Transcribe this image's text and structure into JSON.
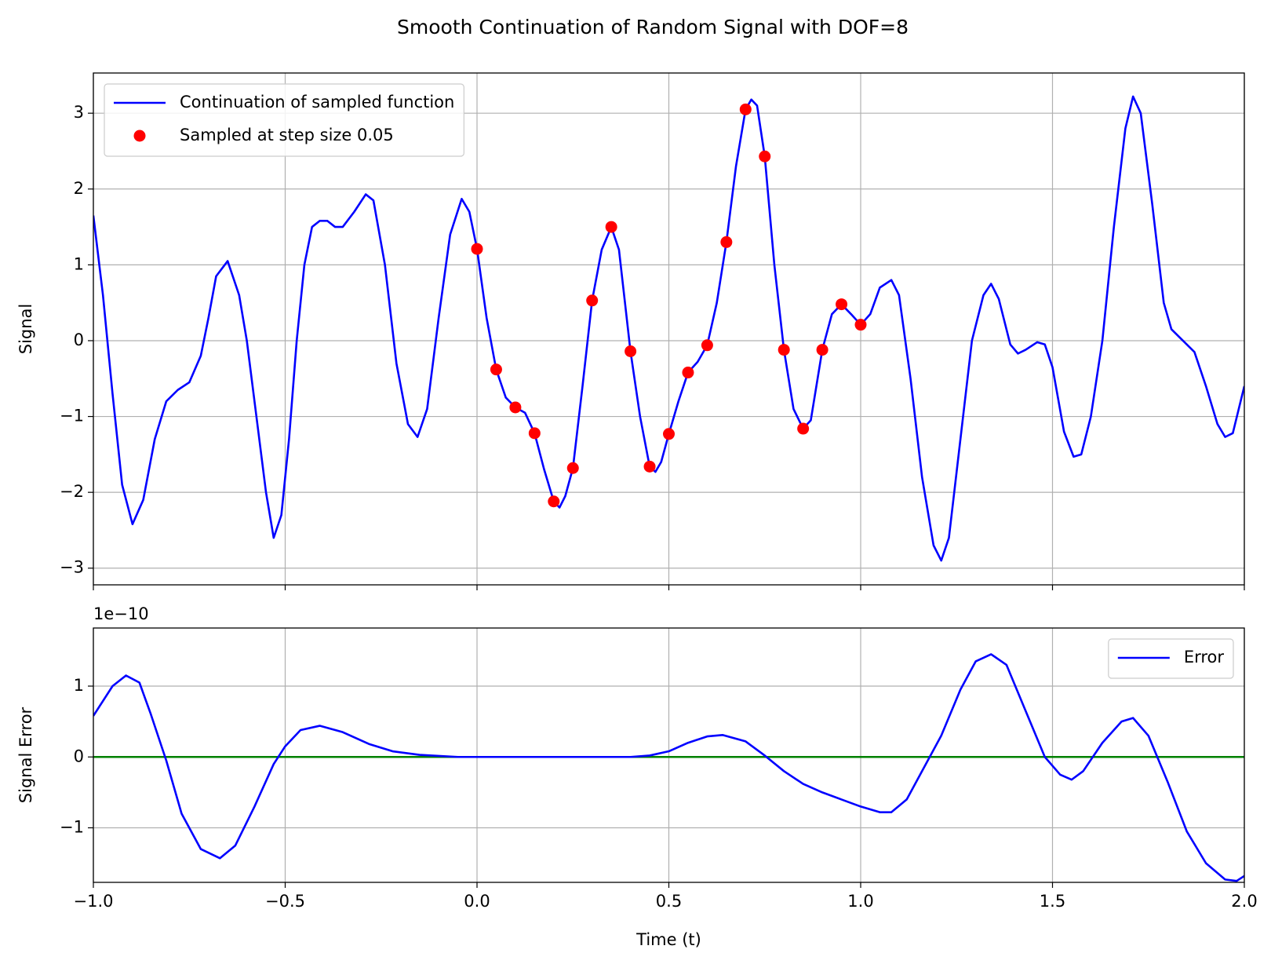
{
  "title": "Smooth Continuation of Random Signal with DOF=8",
  "chart_data": [
    {
      "type": "line",
      "ylabel": "Signal",
      "legend": "upper left",
      "grid": true,
      "xlim": [
        -1,
        2
      ],
      "ylim": [
        -3.22,
        3.53
      ],
      "xticks": [
        -1,
        -0.5,
        0,
        0.5,
        1,
        1.5,
        2
      ],
      "yticks": [
        {
          "value": -3,
          "label": "−3"
        },
        {
          "value": -2,
          "label": "−2"
        },
        {
          "value": -1,
          "label": "−1"
        },
        0,
        1,
        2,
        3
      ],
      "series": [
        {
          "name": "Continuation of sampled function",
          "style": "line",
          "color": "#0000ff",
          "x": [
            -1.0,
            -0.975,
            -0.95,
            -0.925,
            -0.898,
            -0.87,
            -0.84,
            -0.81,
            -0.78,
            -0.75,
            -0.72,
            -0.7,
            -0.68,
            -0.65,
            -0.62,
            -0.6,
            -0.57,
            -0.55,
            -0.53,
            -0.51,
            -0.49,
            -0.47,
            -0.45,
            -0.43,
            -0.41,
            -0.39,
            -0.37,
            -0.35,
            -0.32,
            -0.29,
            -0.27,
            -0.24,
            -0.21,
            -0.18,
            -0.155,
            -0.13,
            -0.1,
            -0.07,
            -0.04,
            -0.02,
            0.0,
            0.025,
            0.05,
            0.075,
            0.1,
            0.125,
            0.15,
            0.175,
            0.2,
            0.215,
            0.23,
            0.25,
            0.275,
            0.3,
            0.325,
            0.35,
            0.37,
            0.4,
            0.425,
            0.45,
            0.465,
            0.48,
            0.5,
            0.525,
            0.55,
            0.575,
            0.6,
            0.625,
            0.65,
            0.675,
            0.7,
            0.715,
            0.73,
            0.75,
            0.775,
            0.8,
            0.825,
            0.85,
            0.87,
            0.9,
            0.925,
            0.95,
            0.975,
            1.0,
            1.025,
            1.05,
            1.08,
            1.1,
            1.13,
            1.16,
            1.19,
            1.21,
            1.23,
            1.26,
            1.29,
            1.32,
            1.34,
            1.36,
            1.39,
            1.41,
            1.43,
            1.46,
            1.48,
            1.5,
            1.53,
            1.555,
            1.575,
            1.6,
            1.63,
            1.66,
            1.69,
            1.71,
            1.73,
            1.76,
            1.79,
            1.81,
            1.84,
            1.87,
            1.9,
            1.93,
            1.95,
            1.97,
            2.0
          ],
          "values": [
            1.65,
            0.6,
            -0.7,
            -1.9,
            -2.42,
            -2.1,
            -1.3,
            -0.8,
            -0.65,
            -0.55,
            -0.2,
            0.3,
            0.85,
            1.05,
            0.6,
            0.0,
            -1.2,
            -2.0,
            -2.6,
            -2.3,
            -1.3,
            0.0,
            1.0,
            1.5,
            1.58,
            1.58,
            1.5,
            1.5,
            1.7,
            1.93,
            1.85,
            1.0,
            -0.3,
            -1.1,
            -1.27,
            -0.9,
            0.3,
            1.4,
            1.87,
            1.7,
            1.21,
            0.3,
            -0.38,
            -0.75,
            -0.88,
            -0.95,
            -1.22,
            -1.7,
            -2.12,
            -2.2,
            -2.05,
            -1.68,
            -0.6,
            0.53,
            1.2,
            1.5,
            1.2,
            -0.14,
            -1.0,
            -1.66,
            -1.73,
            -1.6,
            -1.23,
            -0.8,
            -0.42,
            -0.28,
            -0.06,
            0.5,
            1.3,
            2.3,
            3.05,
            3.18,
            3.1,
            2.43,
            1.0,
            -0.12,
            -0.9,
            -1.16,
            -1.05,
            -0.12,
            0.35,
            0.48,
            0.35,
            0.21,
            0.35,
            0.7,
            0.8,
            0.6,
            -0.5,
            -1.8,
            -2.7,
            -2.9,
            -2.6,
            -1.3,
            0.0,
            0.6,
            0.75,
            0.55,
            -0.05,
            -0.17,
            -0.12,
            -0.02,
            -0.05,
            -0.35,
            -1.2,
            -1.53,
            -1.5,
            -1.0,
            0.0,
            1.5,
            2.8,
            3.22,
            3.0,
            1.8,
            0.5,
            0.15,
            0.0,
            -0.15,
            -0.6,
            -1.1,
            -1.27,
            -1.22,
            -0.6
          ]
        },
        {
          "name": "Sampled at step size 0.05",
          "style": "markers",
          "color": "#ff0000",
          "x": [
            0,
            0.05,
            0.1,
            0.15,
            0.2,
            0.25,
            0.3,
            0.35,
            0.4,
            0.45,
            0.5,
            0.55,
            0.6,
            0.65,
            0.7,
            0.75,
            0.8,
            0.85,
            0.9,
            0.95,
            1.0
          ],
          "values": [
            1.21,
            -0.38,
            -0.88,
            -1.22,
            -2.12,
            -1.68,
            0.53,
            1.5,
            -0.14,
            -1.66,
            -1.23,
            -0.42,
            -0.06,
            1.3,
            3.05,
            2.43,
            -0.12,
            -1.16,
            -0.12,
            0.48,
            0.21
          ]
        }
      ]
    },
    {
      "type": "line",
      "ylabel": "Signal Error",
      "xlabel": "Time (t)",
      "offset_text": "1e−10",
      "legend": "upper right",
      "grid": true,
      "xlim": [
        -1,
        2
      ],
      "ylim": [
        -1.77,
        1.82
      ],
      "xticks": [
        {
          "value": -1,
          "label": "−1.0"
        },
        {
          "value": -0.5,
          "label": "−0.5"
        },
        {
          "value": 0,
          "label": "0.0"
        },
        0.5,
        {
          "value": 1,
          "label": "1.0"
        },
        1.5,
        {
          "value": 2,
          "label": "2.0"
        }
      ],
      "yticks": [
        {
          "value": -1,
          "label": "−1"
        },
        0,
        1
      ],
      "reference_line": {
        "value": 0,
        "color": "#008000"
      },
      "series": [
        {
          "name": "Error",
          "style": "line",
          "color": "#0000ff",
          "x": [
            -1.0,
            -0.95,
            -0.915,
            -0.88,
            -0.85,
            -0.81,
            -0.77,
            -0.72,
            -0.67,
            -0.63,
            -0.58,
            -0.53,
            -0.5,
            -0.46,
            -0.41,
            -0.35,
            -0.28,
            -0.22,
            -0.15,
            -0.05,
            0.0,
            0.4,
            0.45,
            0.5,
            0.55,
            0.6,
            0.64,
            0.7,
            0.75,
            0.8,
            0.85,
            0.9,
            0.95,
            1.0,
            1.05,
            1.08,
            1.12,
            1.17,
            1.21,
            1.26,
            1.3,
            1.34,
            1.38,
            1.43,
            1.48,
            1.52,
            1.55,
            1.58,
            1.63,
            1.68,
            1.71,
            1.75,
            1.8,
            1.85,
            1.9,
            1.95,
            1.98,
            2.0
          ],
          "values": [
            0.58,
            1.0,
            1.15,
            1.05,
            0.6,
            -0.05,
            -0.8,
            -1.3,
            -1.43,
            -1.25,
            -0.7,
            -0.1,
            0.15,
            0.38,
            0.44,
            0.35,
            0.18,
            0.08,
            0.03,
            0.0,
            0.0,
            0.0,
            0.02,
            0.08,
            0.2,
            0.29,
            0.31,
            0.22,
            0.02,
            -0.2,
            -0.38,
            -0.5,
            -0.6,
            -0.7,
            -0.78,
            -0.78,
            -0.6,
            -0.1,
            0.3,
            0.95,
            1.35,
            1.45,
            1.3,
            0.65,
            0.0,
            -0.25,
            -0.32,
            -0.2,
            0.2,
            0.5,
            0.55,
            0.3,
            -0.35,
            -1.05,
            -1.5,
            -1.73,
            -1.75,
            -1.68
          ]
        }
      ]
    }
  ]
}
